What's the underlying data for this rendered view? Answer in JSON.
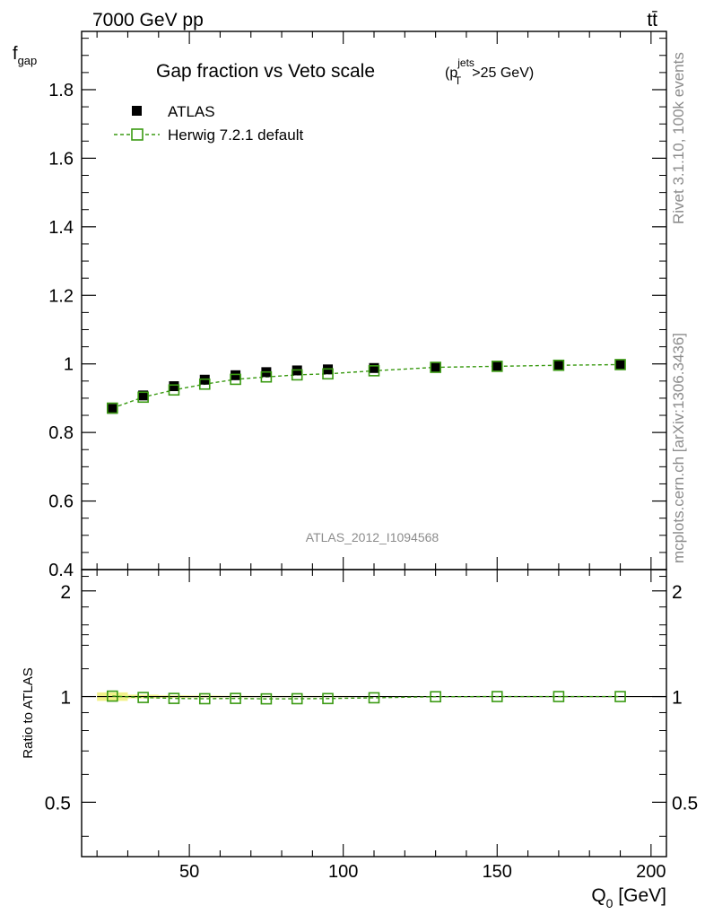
{
  "header": {
    "energy_label": "7000 GeV pp",
    "process_label": "tt̄"
  },
  "side_labels": {
    "rivet": "Rivet 3.1.10,  100k events",
    "mcplots": "mcplots.cern.ch [arXiv:1306.3436]"
  },
  "analysis_tag": "ATLAS_2012_I1094568",
  "colors": {
    "data": "#000000",
    "mc": "#3a9a12",
    "band": "#f2f28a",
    "watermark": "#8c8c8c"
  },
  "chart_data": [
    {
      "type": "scatter",
      "panel": "main",
      "title_main": "Gap fraction vs Veto scale",
      "title_cut": {
        "prefix": "(p",
        "superscript": "jets",
        "subscript": "T",
        "suffix": ">25 GeV)"
      },
      "ylabel": {
        "main": "f",
        "sub": "gap"
      },
      "xlim": [
        15,
        205
      ],
      "ylim": [
        0.4,
        1.97
      ],
      "yticks": [
        0.4,
        0.6,
        0.8,
        1.0,
        1.2,
        1.4,
        1.6,
        1.8
      ],
      "ytick_labels": [
        "0.4",
        "0.6",
        "0.8",
        "1",
        "1.2",
        "1.4",
        "1.6",
        "1.8"
      ],
      "legend_position": "top-left",
      "series": [
        {
          "name": "ATLAS",
          "marker": "filled-square",
          "x": [
            25,
            35,
            45,
            55,
            65,
            75,
            85,
            95,
            110,
            130,
            150,
            170,
            190
          ],
          "y": [
            0.869,
            0.908,
            0.935,
            0.954,
            0.967,
            0.976,
            0.981,
            0.984,
            0.988,
            0.991,
            0.993,
            0.996,
            0.998
          ]
        },
        {
          "name": "Herwig 7.2.1 default",
          "marker": "open-square",
          "line": "dashed",
          "x": [
            25,
            35,
            45,
            55,
            65,
            75,
            85,
            95,
            110,
            130,
            150,
            170,
            190
          ],
          "y": [
            0.871,
            0.903,
            0.924,
            0.941,
            0.955,
            0.962,
            0.968,
            0.971,
            0.98,
            0.99,
            0.993,
            0.996,
            0.998
          ]
        }
      ]
    },
    {
      "type": "scatter",
      "panel": "ratio",
      "ylabel": "Ratio to ATLAS",
      "xlabel": {
        "main": "Q",
        "sub": "0",
        "suffix": " [GeV]"
      },
      "xlim": [
        15,
        205
      ],
      "ylim": [
        0.35,
        2.3
      ],
      "yticks": [
        0.5,
        1,
        2
      ],
      "ytick_labels": [
        "0.5",
        "1",
        "2"
      ],
      "xticks": [
        50,
        100,
        150,
        200
      ],
      "xtick_labels": [
        "50",
        "100",
        "150",
        "200"
      ],
      "reference": 1.0,
      "band_x": [
        20,
        200
      ],
      "band_halfwidth": [
        0.028,
        0.012,
        0.008,
        0.006,
        0.005,
        0.004,
        0.004,
        0.004,
        0.003,
        0.003,
        0.003,
        0.003,
        0.003
      ],
      "series": [
        {
          "name": "Herwig 7.2.1 default",
          "marker": "open-square",
          "line": "dashed",
          "x": [
            25,
            35,
            45,
            55,
            65,
            75,
            85,
            95,
            110,
            130,
            150,
            170,
            190
          ],
          "y": [
            1.003,
            0.994,
            0.988,
            0.986,
            0.988,
            0.985,
            0.986,
            0.987,
            0.992,
            0.999,
            1.0,
            1.0,
            1.0
          ]
        }
      ]
    }
  ]
}
